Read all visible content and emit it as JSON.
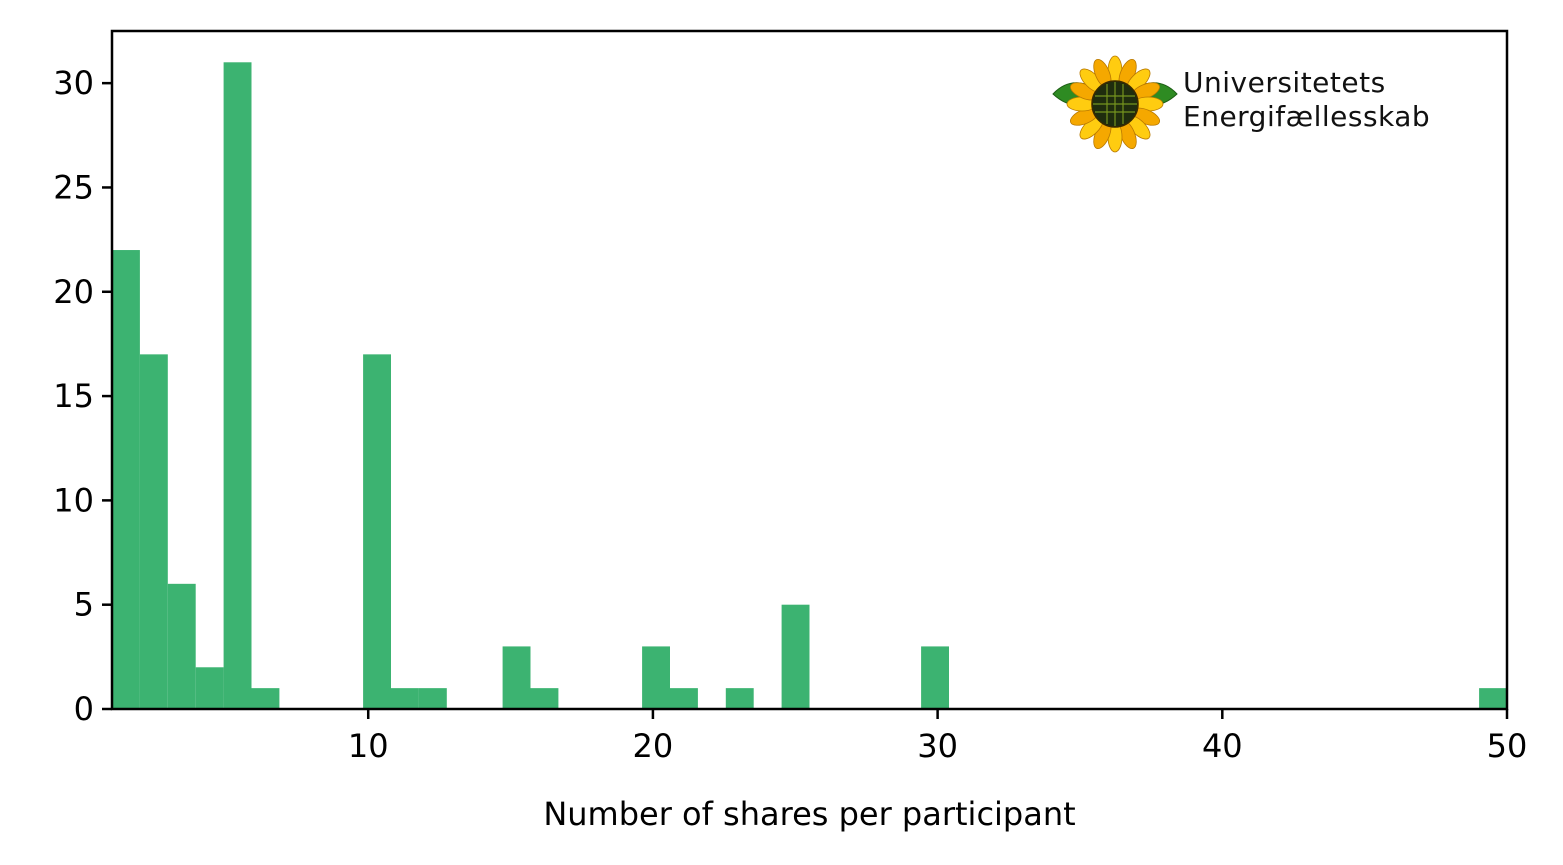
{
  "chart_data": {
    "type": "bar",
    "xlabel": "Number of shares per participant",
    "ylabel": "",
    "xlim": [
      1,
      50
    ],
    "ylim": [
      0,
      32.5
    ],
    "xticks": [
      10,
      20,
      30,
      40,
      50
    ],
    "yticks": [
      0,
      5,
      10,
      15,
      20,
      25,
      30
    ],
    "bar_color": "#3cb371",
    "bins": [
      {
        "x0": 1.0,
        "x1": 1.98,
        "count": 22
      },
      {
        "x0": 1.98,
        "x1": 2.96,
        "count": 17
      },
      {
        "x0": 2.96,
        "x1": 3.94,
        "count": 6
      },
      {
        "x0": 3.94,
        "x1": 4.92,
        "count": 2
      },
      {
        "x0": 4.92,
        "x1": 5.9,
        "count": 31
      },
      {
        "x0": 5.9,
        "x1": 6.88,
        "count": 1
      },
      {
        "x0": 9.82,
        "x1": 10.8,
        "count": 17
      },
      {
        "x0": 10.8,
        "x1": 11.78,
        "count": 1
      },
      {
        "x0": 11.78,
        "x1": 12.76,
        "count": 1
      },
      {
        "x0": 14.72,
        "x1": 15.7,
        "count": 3
      },
      {
        "x0": 15.7,
        "x1": 16.68,
        "count": 1
      },
      {
        "x0": 19.62,
        "x1": 20.6,
        "count": 3
      },
      {
        "x0": 20.6,
        "x1": 21.58,
        "count": 1
      },
      {
        "x0": 22.56,
        "x1": 23.54,
        "count": 1
      },
      {
        "x0": 24.52,
        "x1": 25.5,
        "count": 5
      },
      {
        "x0": 29.42,
        "x1": 30.4,
        "count": 3
      },
      {
        "x0": 49.02,
        "x1": 50.0,
        "count": 1
      }
    ],
    "grid": false,
    "legend": "none"
  },
  "logo": {
    "line1": "Universitetets",
    "line2": "Energifællesskab",
    "icon": "sunflower-icon"
  }
}
